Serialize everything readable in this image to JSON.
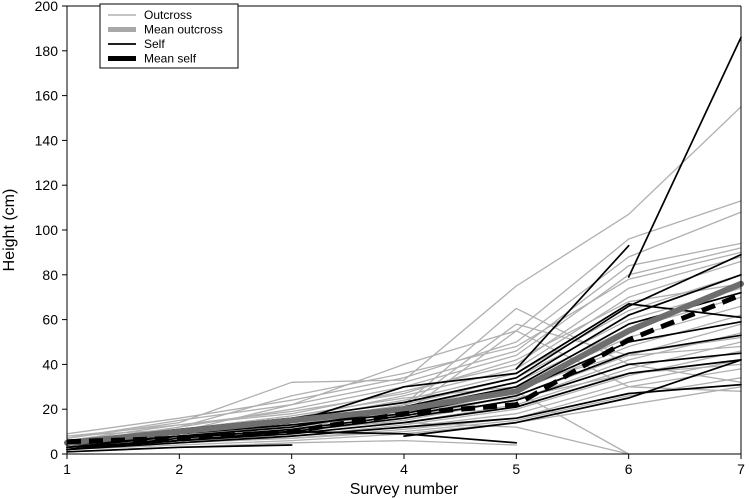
{
  "chart_data": {
    "type": "line",
    "xlabel": "Survey number",
    "ylabel": "Height (cm)",
    "xlim": [
      1,
      7
    ],
    "ylim": [
      0,
      200
    ],
    "x_ticks": [
      1,
      2,
      3,
      4,
      5,
      6,
      7
    ],
    "y_ticks": [
      0,
      20,
      40,
      60,
      80,
      100,
      120,
      140,
      160,
      180,
      200
    ],
    "grid": false,
    "legend_position": "top-left",
    "legend": [
      {
        "label": "Outcross",
        "color": "#aaaaaa",
        "style": "thin-solid"
      },
      {
        "label": "Mean outcross",
        "color": "#999999",
        "style": "thick-solid"
      },
      {
        "label": "Self",
        "color": "#000000",
        "style": "thin-solid"
      },
      {
        "label": "Mean self",
        "color": "#000000",
        "style": "thick-dashed"
      }
    ],
    "series": [
      {
        "group": "Outcross",
        "x": [
          1,
          2,
          3,
          4,
          5,
          6,
          7
        ],
        "y": [
          7,
          14,
          32,
          33,
          75,
          107,
          155
        ]
      },
      {
        "group": "Outcross",
        "x": [
          1,
          2,
          3,
          4,
          5,
          6,
          7
        ],
        "y": [
          5,
          10,
          22,
          40,
          55,
          96,
          113
        ]
      },
      {
        "group": "Outcross",
        "x": [
          1,
          2,
          3,
          4,
          5,
          6,
          7
        ],
        "y": [
          9,
          16,
          24,
          34,
          50,
          88,
          108
        ]
      },
      {
        "group": "Outcross",
        "x": [
          1,
          2,
          3,
          4,
          5,
          6,
          7
        ],
        "y": [
          4,
          12,
          20,
          30,
          44,
          80,
          92
        ]
      },
      {
        "group": "Outcross",
        "x": [
          1,
          2,
          3,
          4,
          5,
          6,
          7
        ],
        "y": [
          6,
          13,
          18,
          28,
          40,
          74,
          88
        ]
      },
      {
        "group": "Outcross",
        "x": [
          1,
          2,
          3,
          4,
          5,
          6,
          7
        ],
        "y": [
          3,
          9,
          16,
          26,
          38,
          70,
          86
        ]
      },
      {
        "group": "Outcross",
        "x": [
          1,
          2,
          3,
          4,
          5,
          6,
          7
        ],
        "y": [
          8,
          11,
          15,
          24,
          36,
          64,
          80
        ]
      },
      {
        "group": "Outcross",
        "x": [
          1,
          2,
          3,
          4,
          5,
          6,
          7
        ],
        "y": [
          5,
          10,
          14,
          22,
          34,
          60,
          74
        ]
      },
      {
        "group": "Outcross",
        "x": [
          1,
          2,
          3,
          4,
          5,
          6,
          7
        ],
        "y": [
          4,
          8,
          13,
          20,
          32,
          56,
          70
        ]
      },
      {
        "group": "Outcross",
        "x": [
          1,
          2,
          3,
          4,
          5,
          6,
          7
        ],
        "y": [
          6,
          9,
          12,
          18,
          30,
          52,
          66
        ]
      },
      {
        "group": "Outcross",
        "x": [
          1,
          2,
          3,
          4,
          5,
          6,
          7
        ],
        "y": [
          3,
          7,
          11,
          17,
          28,
          48,
          62
        ]
      },
      {
        "group": "Outcross",
        "x": [
          1,
          2,
          3,
          4,
          5,
          6,
          7
        ],
        "y": [
          5,
          8,
          10,
          16,
          26,
          44,
          58
        ]
      },
      {
        "group": "Outcross",
        "x": [
          1,
          2,
          3,
          4,
          5,
          6,
          7
        ],
        "y": [
          2,
          6,
          10,
          15,
          24,
          42,
          54
        ]
      },
      {
        "group": "Outcross",
        "x": [
          1,
          2,
          3,
          4,
          5,
          6,
          7
        ],
        "y": [
          4,
          7,
          9,
          14,
          22,
          38,
          50
        ]
      },
      {
        "group": "Outcross",
        "x": [
          1,
          2,
          3,
          4,
          5,
          6,
          7
        ],
        "y": [
          3,
          6,
          8,
          13,
          20,
          35,
          46
        ]
      },
      {
        "group": "Outcross",
        "x": [
          1,
          2,
          3,
          4,
          5,
          6,
          7
        ],
        "y": [
          2,
          5,
          8,
          12,
          18,
          32,
          42
        ]
      },
      {
        "group": "Outcross",
        "x": [
          1,
          2,
          3,
          4,
          5,
          6,
          7
        ],
        "y": [
          4,
          6,
          7,
          11,
          16,
          30,
          38
        ]
      },
      {
        "group": "Outcross",
        "x": [
          1,
          2,
          3,
          4,
          5,
          6,
          7
        ],
        "y": [
          3,
          5,
          7,
          10,
          15,
          26,
          34
        ]
      },
      {
        "group": "Outcross",
        "x": [
          1,
          2,
          3,
          4,
          5,
          6,
          7
        ],
        "y": [
          2,
          4,
          6,
          9,
          14,
          22,
          30
        ]
      },
      {
        "group": "Outcross",
        "x": [
          1,
          2,
          3,
          4,
          5,
          6,
          7
        ],
        "y": [
          5,
          12,
          26,
          36,
          48,
          78,
          90
        ]
      },
      {
        "group": "Outcross",
        "x": [
          1,
          2,
          3,
          4,
          5,
          6,
          7
        ],
        "y": [
          7,
          15,
          22,
          32,
          46,
          84,
          94
        ]
      },
      {
        "group": "Outcross",
        "x": [
          1,
          2,
          3,
          4,
          5,
          6
        ],
        "y": [
          4,
          9,
          14,
          20,
          28,
          0
        ]
      },
      {
        "group": "Outcross",
        "x": [
          1,
          2,
          3,
          4,
          5,
          6
        ],
        "y": [
          6,
          10,
          12,
          14,
          12,
          0
        ]
      },
      {
        "group": "Outcross",
        "x": [
          1,
          2,
          3,
          4,
          5,
          6,
          7
        ],
        "y": [
          3,
          7,
          10,
          22,
          65,
          40,
          32
        ]
      },
      {
        "group": "Outcross",
        "x": [
          1,
          2,
          3,
          4,
          5,
          6,
          7
        ],
        "y": [
          2,
          5,
          9,
          18,
          55,
          30,
          28
        ]
      },
      {
        "group": "Outcross",
        "x": [
          1,
          2,
          3,
          4,
          5
        ],
        "y": [
          1,
          3,
          5,
          6,
          4
        ]
      },
      {
        "group": "Outcross",
        "x": [
          1,
          2,
          3,
          4,
          5,
          6,
          7
        ],
        "y": [
          5,
          11,
          17,
          25,
          30,
          45,
          52
        ]
      },
      {
        "group": "Outcross",
        "x": [
          1,
          2,
          3,
          4,
          5,
          6,
          7
        ],
        "y": [
          8,
          13,
          19,
          27,
          42,
          68,
          76
        ]
      },
      {
        "group": "Outcross",
        "x": [
          1,
          2,
          3,
          4,
          5,
          6,
          7
        ],
        "y": [
          6,
          11,
          15,
          21,
          58,
          44,
          48
        ]
      },
      {
        "group": "Outcross",
        "x": [
          1,
          2,
          3,
          4,
          5,
          6,
          7
        ],
        "y": [
          4,
          9,
          13,
          19,
          25,
          36,
          40
        ]
      },
      {
        "group": "Self",
        "x": [
          5,
          6
        ],
        "y": [
          38,
          93
        ]
      },
      {
        "group": "Self",
        "x": [
          6,
          7
        ],
        "y": [
          79,
          186
        ]
      },
      {
        "group": "Self",
        "x": [
          1,
          2,
          3,
          4,
          5,
          6,
          7
        ],
        "y": [
          5,
          11,
          16,
          23,
          34,
          66,
          89
        ]
      },
      {
        "group": "Self",
        "x": [
          1,
          2,
          3,
          4,
          5,
          6,
          7
        ],
        "y": [
          4,
          10,
          15,
          21,
          32,
          62,
          80
        ]
      },
      {
        "group": "Self",
        "x": [
          1,
          2,
          3,
          4,
          5,
          6,
          7
        ],
        "y": [
          6,
          9,
          14,
          30,
          36,
          67,
          61
        ]
      },
      {
        "group": "Self",
        "x": [
          1,
          2,
          3,
          4,
          5,
          6,
          7
        ],
        "y": [
          3,
          8,
          12,
          20,
          30,
          58,
          72
        ]
      },
      {
        "group": "Self",
        "x": [
          1,
          2,
          3,
          4,
          5,
          6,
          7
        ],
        "y": [
          5,
          9,
          13,
          18,
          28,
          50,
          59
        ]
      },
      {
        "group": "Self",
        "x": [
          1,
          2,
          3,
          4,
          5,
          6,
          7
        ],
        "y": [
          2,
          7,
          11,
          17,
          26,
          45,
          53
        ]
      },
      {
        "group": "Self",
        "x": [
          1,
          2,
          3,
          4,
          5,
          6,
          7
        ],
        "y": [
          4,
          8,
          10,
          16,
          24,
          40,
          45
        ]
      },
      {
        "group": "Self",
        "x": [
          1,
          2,
          3,
          4,
          5,
          6,
          7
        ],
        "y": [
          3,
          6,
          9,
          14,
          21,
          36,
          42
        ]
      },
      {
        "group": "Self",
        "x": [
          1,
          2,
          3,
          4,
          5,
          6,
          7
        ],
        "y": [
          2,
          5,
          8,
          12,
          16,
          27,
          31
        ]
      },
      {
        "group": "Self",
        "x": [
          1,
          2,
          3
        ],
        "y": [
          1,
          3,
          4
        ]
      },
      {
        "group": "Self",
        "x": [
          1,
          2,
          3,
          4,
          5
        ],
        "y": [
          2,
          6,
          10,
          9,
          5
        ]
      },
      {
        "group": "Self",
        "x": [
          4,
          5,
          6,
          7
        ],
        "y": [
          8,
          14,
          25,
          42
        ]
      },
      {
        "group": "Mean outcross",
        "x": [
          1,
          2,
          3,
          4,
          5,
          6,
          7
        ],
        "y": [
          5,
          10,
          15,
          20,
          28,
          55,
          76
        ]
      },
      {
        "group": "Mean self",
        "x": [
          1,
          2,
          3,
          4,
          5,
          6,
          7
        ],
        "y": [
          5.5,
          7,
          10,
          18,
          22,
          51,
          71
        ]
      }
    ]
  }
}
